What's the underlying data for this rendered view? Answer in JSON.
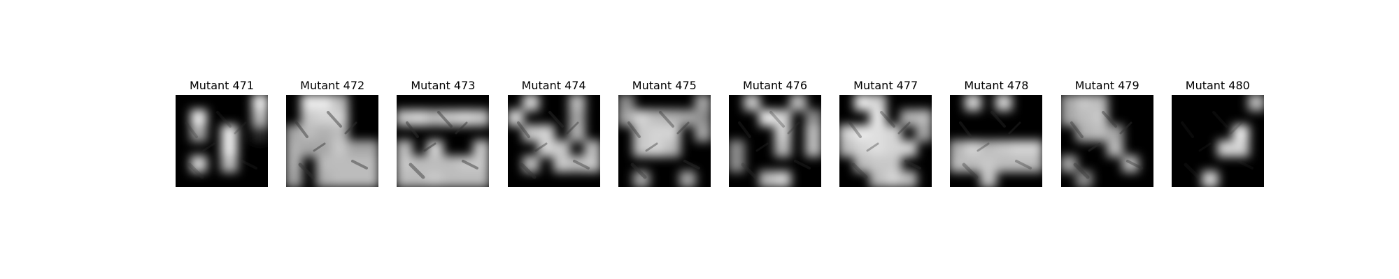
{
  "figure": {
    "panels": [
      {
        "title": "Mutant 471",
        "blocks": [
          [
            0,
            0,
            0,
            0,
            0,
            1
          ],
          [
            0,
            1,
            0,
            0,
            0,
            0.8
          ],
          [
            0,
            0.7,
            0,
            1,
            0,
            0.2
          ],
          [
            0,
            0,
            0,
            1,
            0,
            0
          ],
          [
            0,
            0.9,
            0,
            0.8,
            0,
            0
          ],
          [
            0,
            0,
            0,
            0,
            0,
            0
          ]
        ],
        "scene": 0.25
      },
      {
        "title": "Mutant 472",
        "blocks": [
          [
            0,
            1,
            1,
            0.8,
            0,
            0
          ],
          [
            0,
            0.85,
            0.9,
            0.9,
            0,
            0
          ],
          [
            0.7,
            0.8,
            0.75,
            0.8,
            0,
            0
          ],
          [
            0.75,
            0.7,
            0.7,
            0.85,
            0.7,
            0.7
          ],
          [
            0.75,
            0,
            0.8,
            0.8,
            0.8,
            0.8
          ],
          [
            0.7,
            0,
            0.75,
            0.8,
            0.8,
            0.8
          ]
        ],
        "scene": 0.45
      },
      {
        "title": "Mutant 473",
        "blocks": [
          [
            0,
            0,
            0,
            0,
            0,
            0
          ],
          [
            0.85,
            0.9,
            0.8,
            0.85,
            0.9,
            0.85
          ],
          [
            0,
            0,
            0,
            0,
            0,
            0
          ],
          [
            0.8,
            0,
            0.9,
            0,
            0,
            0.85
          ],
          [
            0.85,
            0.8,
            0.8,
            0.8,
            0.85,
            0.85
          ],
          [
            0.8,
            0.8,
            0.85,
            0.8,
            0.8,
            0.8
          ]
        ],
        "scene": 0.45
      },
      {
        "title": "Mutant 474",
        "blocks": [
          [
            0,
            0.9,
            0,
            0,
            0.8,
            0
          ],
          [
            0.9,
            0,
            0,
            0,
            0.7,
            0
          ],
          [
            0,
            0.85,
            0.9,
            0,
            0.75,
            0
          ],
          [
            0,
            0,
            0.9,
            0.85,
            0,
            0.8
          ],
          [
            0,
            0.8,
            0,
            0.85,
            0.8,
            0.85
          ],
          [
            0,
            0,
            0,
            0,
            0,
            0
          ]
        ],
        "scene": 0.4
      },
      {
        "title": "Mutant 475",
        "blocks": [
          [
            0.6,
            0,
            0,
            0,
            0,
            0.7
          ],
          [
            0.7,
            0.9,
            0.8,
            0.75,
            0.7,
            0.6
          ],
          [
            0,
            0.85,
            0.9,
            0.9,
            0,
            0.7
          ],
          [
            0,
            0.85,
            0.9,
            0.8,
            0,
            0
          ],
          [
            0,
            0,
            0,
            0,
            0,
            0
          ],
          [
            0,
            0.7,
            0,
            0,
            0.7,
            0
          ]
        ],
        "scene": 0.4
      },
      {
        "title": "Mutant 476",
        "blocks": [
          [
            0,
            0.85,
            0,
            0,
            0.8,
            0
          ],
          [
            0,
            0,
            1,
            0.9,
            0,
            0.6
          ],
          [
            0,
            0,
            0,
            0.9,
            0,
            0.8
          ],
          [
            0.6,
            0,
            0,
            0.8,
            0,
            0.8
          ],
          [
            0.6,
            0,
            0,
            0,
            0,
            0
          ],
          [
            0,
            0,
            0.8,
            0.9,
            0,
            0
          ]
        ],
        "scene": 0.3
      },
      {
        "title": "Mutant 477",
        "blocks": [
          [
            0,
            1,
            0.9,
            0,
            0,
            0
          ],
          [
            0,
            0,
            1,
            0,
            0.75,
            0.8
          ],
          [
            0.9,
            1,
            0.95,
            0.9,
            0,
            0.7
          ],
          [
            0.8,
            0.9,
            0.95,
            0.9,
            0.9,
            0
          ],
          [
            0,
            0.8,
            0.85,
            0.85,
            0,
            0
          ],
          [
            0,
            0,
            0.8,
            0.9,
            0.8,
            0
          ]
        ],
        "scene": 0.35
      },
      {
        "title": "Mutant 478",
        "blocks": [
          [
            0,
            0.9,
            0,
            0.9,
            0,
            0
          ],
          [
            0,
            0,
            0,
            0,
            0,
            0
          ],
          [
            0,
            0,
            0,
            0,
            0,
            0
          ],
          [
            0.75,
            0.9,
            0.8,
            0.85,
            0.9,
            0.9
          ],
          [
            0.8,
            0.8,
            0.85,
            0.8,
            0.8,
            0.8
          ],
          [
            0,
            0,
            0.85,
            0,
            0,
            0
          ]
        ],
        "scene": 0.35
      },
      {
        "title": "Mutant 479",
        "blocks": [
          [
            0.7,
            0.85,
            0.8,
            0,
            0,
            0
          ],
          [
            0.7,
            0.8,
            0.85,
            0,
            0,
            0
          ],
          [
            0,
            0.75,
            0.8,
            0.7,
            0,
            0
          ],
          [
            0,
            0,
            0,
            0.8,
            0,
            0
          ],
          [
            0.7,
            0,
            0,
            0,
            0.8,
            0
          ],
          [
            0,
            0.6,
            0,
            0,
            0,
            0
          ]
        ],
        "scene": 0.4
      },
      {
        "title": "Mutant 480",
        "blocks": [
          [
            0,
            0,
            0,
            0,
            0,
            0.8
          ],
          [
            0,
            0,
            0,
            0,
            0,
            0
          ],
          [
            0,
            0,
            0,
            0,
            1,
            0
          ],
          [
            0,
            0,
            0,
            0.9,
            0.9,
            0
          ],
          [
            0,
            0,
            0,
            0,
            0,
            0
          ],
          [
            0,
            0,
            0.9,
            0,
            0,
            0
          ]
        ],
        "scene": 0.2
      }
    ]
  }
}
